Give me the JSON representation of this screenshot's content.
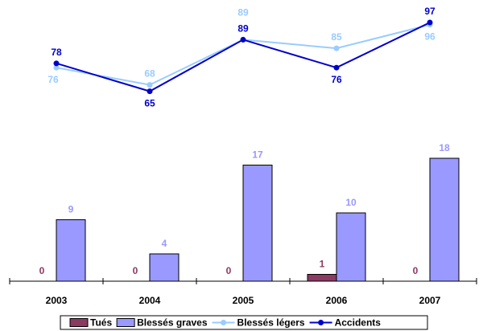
{
  "chart_data": {
    "type": "bar",
    "categories": [
      "2003",
      "2004",
      "2005",
      "2006",
      "2007"
    ],
    "series": [
      {
        "name": "Tués",
        "kind": "bar",
        "values": [
          0,
          0,
          0,
          1,
          0
        ],
        "color": "#8B3A62",
        "label_color": "#8B3A62"
      },
      {
        "name": "Blessés graves",
        "kind": "bar",
        "values": [
          9,
          4,
          17,
          10,
          18
        ],
        "color": "#9999FF",
        "label_color": "#9999FF"
      },
      {
        "name": "Blessés légers",
        "kind": "line",
        "values": [
          76,
          68,
          89,
          85,
          96
        ],
        "color": "#99CCFF",
        "label_color": "#99CCFF"
      },
      {
        "name": "Accidents",
        "kind": "line",
        "values": [
          78,
          65,
          89,
          76,
          97
        ],
        "color": "#0000CC",
        "label_color": "#0000CC"
      }
    ],
    "bar_ylim": [
      0,
      20
    ],
    "line_ylim": [
      60,
      100
    ],
    "legend_position": "bottom",
    "grid": false
  }
}
